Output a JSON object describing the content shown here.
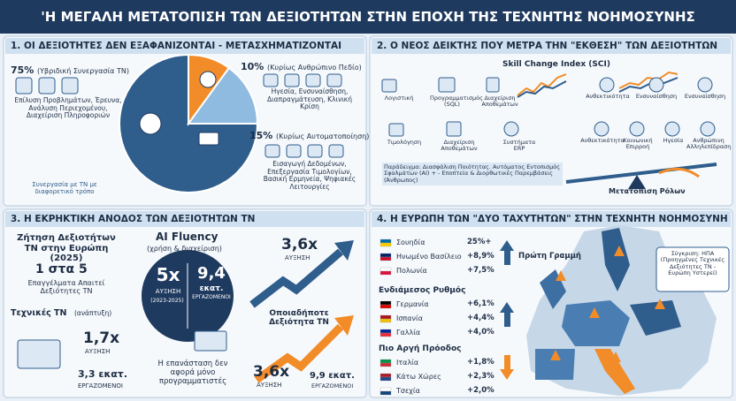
{
  "header": {
    "title": "'Η ΜΕΓΑΛΗ ΜΕΤΑΤΟΠΙΣΗ ΤΩΝ ΔΕΞΙΟΤΗΤΩΝ ΣΤΗΝ ΕΠΟΧΗ ΤΗΣ ΤΕΧΝΗΤΗΣ ΝΟΗΜΟΣΥΝΗΣ"
  },
  "panel1": {
    "title": "1. ΟΙ ΔΕΞΙΟΤΗΤΕΣ ΔΕΝ ΕΞΑΦΑΝΙΖΟΝΤΑΙ - ΜΕΤΑΣΧΗΜΑΤΙΖΟΝΤΑΙ",
    "pie": [
      {
        "value": 75,
        "label": "75%",
        "caption": "(Υβριδική Συνεργασία ΤΝ)",
        "skills": "Επίλυση Προβλημάτων, Έρευνα, Ανάλυση Περιεχομένου, Διαχείριση Πληροφοριών",
        "note": "Συνεργασία με ΤΝ με διαφορετικό τρόπο"
      },
      {
        "value": 10,
        "label": "10%",
        "caption": "(Κυρίως Ανθρώπινο Πεδίο)",
        "skills": "Ηγεσία, Ενσυναίσθηση, Διαπραγμάτευση, Κλινική Κρίση"
      },
      {
        "value": 15,
        "label": "15%",
        "caption": "(Κυρίως Αυτοματοποίηση)",
        "skills": "Εισαγωγή Δεδομένων, Επεξεργασία Τιμολογίων, Βασική Ερμηνεία, Ψηφιακές Λειτουργίες"
      }
    ]
  },
  "panel2": {
    "title": "2. Ο ΝΕΟΣ ΔΕΙΚΤΗΣ ΠΟΥ ΜΕΤΡΑ ΤΗΝ \"ΕΚΘΕΣΗ\" ΤΩΝ ΔΕΞΙΟΤΗΤΩΝ",
    "index_title": "Skill Change Index (SCI)",
    "automated": [
      "Λογιστική",
      "Προγραμματισμός (SQL)",
      "Διαχείριση Αποθεμάτων",
      "Τιμολόγηση",
      "Διαχείριση Αποθεμάτων",
      "Συστήματα ERP"
    ],
    "human": [
      "Ανθεκτικότητα",
      "Ενσυναίσθηση",
      "Ενσυναίσθηση",
      "Ανθεκτικότητα",
      "Κοινωνική Επιρροή",
      "Ηγεσία",
      "Ανθρώπινη Αλληλεπίδραση"
    ],
    "example": "Παράδειγμα: Διασφάλιση Ποιότητας. Αυτόματος Εντοπισμός Σφαλμάτων (AI) + - Εποπτεία & Διορθωτικές Παρεμβάσεις (Άνθρωπος)",
    "shift": "Μετατόπιση Ρόλων"
  },
  "panel3": {
    "title": "3. Η ΕΚΡΗΚΤΙΚΗ ΑΝΟΔΟΣ ΤΩΝ ΔΕΞΙΟΤΗΤΩΝ ΤΝ",
    "demand": "Ζήτηση Δεξιοτήτων ΤΝ στην Ευρώπη (2025)",
    "ratio": "1 στα 5",
    "ratio_text": "Επαγγέλματα Απαιτεί Δεξιότητες ΤΝ",
    "technical": {
      "title": "Τεχνικές ΤΝ",
      "sub": "(ανάπτυξη)",
      "growth": "1,7x",
      "growth_label": "ΑΥΞΗΣΗ",
      "workers": "3,3 εκατ.",
      "workers_label": "ΕΡΓΑΖΟΜΕΝΟΙ"
    },
    "fluency": {
      "title": "AI Fluency",
      "sub": "(χρήση & διαχείριση)",
      "growth": "5x",
      "growth_label": "ΑΥΞΗΣΗ",
      "period": "(2023-2025)",
      "workers": "9,4",
      "workers_unit": "εκατ.",
      "workers_label": "ΕΡΓΑΖΟΜΕΝΟΙ",
      "note": "Η επανάσταση δεν αφορά μόνο προγραμματιστές"
    },
    "any": {
      "top_growth": "3,6x",
      "top_growth_label": "ΑΥΞΗΣΗ",
      "title": "Οποιαδήποτε Δεξιότητα ΤΝ",
      "growth": "3,6x",
      "growth_label": "ΑΥΞΗΣΗ",
      "workers": "9,9 εκατ.",
      "workers_label": "ΕΡΓΑΖΟΜΕΝΟΙ"
    }
  },
  "panel4": {
    "title": "4. Η ΕΥΡΩΠΗ ΤΩΝ \"ΔΥΟ ΤΑΧΥΤΗΤΩΝ\" ΣΤΗΝ ΤΕΧΝΗΤΗ ΝΟΗΜΟΣΥΝΗ",
    "groups": [
      {
        "name": "Πρώτη Γραμμή",
        "rows": [
          {
            "country": "Σουηδία",
            "change": "25%+"
          },
          {
            "country": "Ηνωμένο Βασίλειο",
            "change": "+8,9%"
          },
          {
            "country": "Πολωνία",
            "change": "+7,5%"
          }
        ]
      },
      {
        "name": "Ενδιάμεσος Ρυθμός",
        "rows": [
          {
            "country": "Γερμανία",
            "change": "+6,1%"
          },
          {
            "country": "Ισπανία",
            "change": "+4,4%"
          },
          {
            "country": "Γαλλία",
            "change": "+4,0%"
          }
        ]
      },
      {
        "name": "Πιο Αργή Πρόοδος",
        "rows": [
          {
            "country": "Ιταλία",
            "change": "+1,8%"
          },
          {
            "country": "Κάτω Χώρες",
            "change": "+2,3%"
          },
          {
            "country": "Τσεχία",
            "change": "+2,0%"
          }
        ]
      }
    ],
    "comparison": "Σύγκριση: ΗΠΑ (Προηγμένες Τεχνικές Δεξιότητες ΤΝ - Ευρώπη Υστερεί)"
  }
}
